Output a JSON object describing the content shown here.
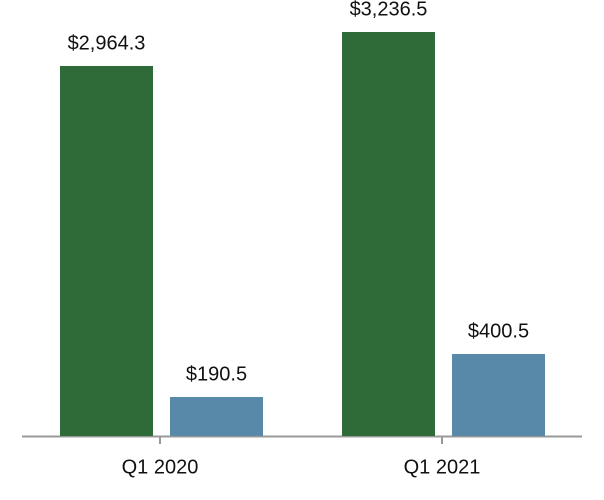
{
  "chart_data": {
    "type": "bar",
    "categories": [
      "Q1 2020",
      "Q1 2021"
    ],
    "series": [
      {
        "color": "#2e6b38",
        "values": [
          2964.3,
          3236.5
        ],
        "value_labels": [
          "$2,964.3",
          "$3,236.5"
        ]
      },
      {
        "color": "#5889a8",
        "values": [
          190.5,
          400.5
        ],
        "value_labels": [
          "$190.5",
          "$400.5"
        ]
      }
    ]
  }
}
